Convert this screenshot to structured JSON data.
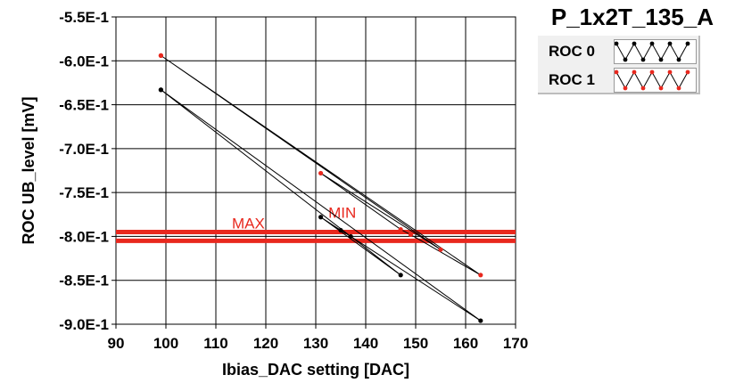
{
  "plot_title": "P_1x2T_135_A",
  "legend": [
    {
      "label": "ROC 0",
      "color": "#000000"
    },
    {
      "label": "ROC 1",
      "color": "#e8281e"
    }
  ],
  "chart_data": {
    "type": "line",
    "xlabel": "Ibias_DAC setting [DAC]",
    "ylabel": "ROC UB_level [mV]",
    "xlim": [
      90,
      170
    ],
    "ylim": [
      -0.9,
      -0.55
    ],
    "x_ticks": [
      "90",
      "100",
      "110",
      "120",
      "130",
      "140",
      "150",
      "160",
      "170"
    ],
    "y_ticks": [
      "-5.5E-1",
      "-6.0E-1",
      "-6.5E-1",
      "-7.0E-1",
      "-7.5E-1",
      "-8.0E-1",
      "-8.5E-1",
      "-9.0E-1"
    ],
    "grid": true,
    "series": [
      {
        "name": "ROC 0",
        "color": "#000000",
        "x": [
          99,
          147,
          131,
          135,
          137,
          163,
          99
        ],
        "y": [
          -0.633,
          -0.844,
          -0.778,
          -0.793,
          -0.8,
          -0.896,
          -0.633
        ]
      },
      {
        "name": "ROC 1",
        "color": "#e8281e",
        "x": [
          99,
          155,
          131,
          147,
          149,
          163,
          99
        ],
        "y": [
          -0.594,
          -0.815,
          -0.728,
          -0.792,
          -0.798,
          -0.844,
          -0.594
        ]
      }
    ],
    "hlines": [
      {
        "label": "MAX",
        "y": -0.795,
        "color": "#e8281e"
      },
      {
        "label": "MIN",
        "y": -0.805,
        "color": "#e8281e"
      }
    ],
    "hline_labels": [
      {
        "text": "MAX",
        "x": 116.5,
        "y": -0.791
      },
      {
        "text": "MIN",
        "x": 135.3,
        "y": -0.779
      }
    ]
  }
}
